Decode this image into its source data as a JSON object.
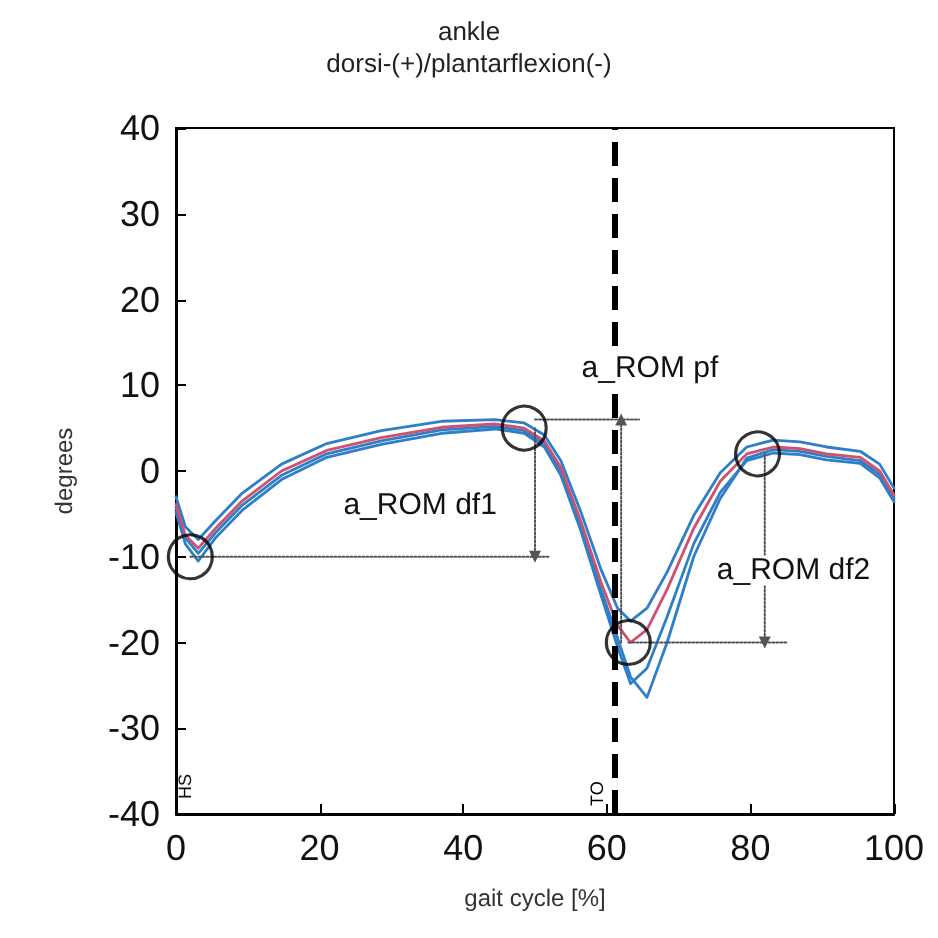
{
  "chart_data": {
    "type": "line",
    "title": "ankle",
    "subtitle": "dorsi-(+)/plantarflexion(-)",
    "xlabel": "gait cycle [%]",
    "ylabel": "degrees",
    "xlim": [
      0,
      100
    ],
    "xticks": [
      0,
      20,
      40,
      60,
      80,
      100
    ],
    "ylim": [
      -40,
      40
    ],
    "yticks": [
      -40,
      -30,
      -20,
      -10,
      0,
      10,
      20,
      30,
      40
    ],
    "marker": "none",
    "line_style": "solid",
    "series": [
      {
        "color": "#2f7fc8",
        "x": [
          0,
          1.3,
          3.1,
          5.5,
          9.2,
          14.7,
          21,
          28.6,
          37,
          44.4,
          48.5,
          51.3,
          53.6,
          56.4,
          59.2,
          61.5,
          63.3,
          65.6,
          68.4,
          72.1,
          75.8,
          79.5,
          83.2,
          86.9,
          90.6,
          95.3,
          98,
          100
        ],
        "values": [
          -3,
          -6.5,
          -8,
          -5.8,
          -2.6,
          0.8,
          3.2,
          4.7,
          5.8,
          6,
          5.6,
          4.2,
          1.2,
          -4.8,
          -11.5,
          -16,
          -17.5,
          -16,
          -11.8,
          -5.2,
          -0.2,
          2.8,
          3.6,
          3.4,
          2.8,
          2.3,
          0.8,
          -2
        ]
      },
      {
        "color": "#2f7fc8",
        "x": [
          0,
          1.3,
          3.1,
          5.5,
          9.2,
          14.7,
          21,
          28.6,
          37,
          44.4,
          48.5,
          51.3,
          53.6,
          56.4,
          59.2,
          61.5,
          63.3,
          65.6,
          68.4,
          72.1,
          75.8,
          79.5,
          83.2,
          86.9,
          90.6,
          95.3,
          98,
          100
        ],
        "values": [
          -4.8,
          -8.5,
          -10.5,
          -7.8,
          -4.6,
          -1,
          1.6,
          3.1,
          4.4,
          4.9,
          4.4,
          2.8,
          -0.5,
          -7,
          -14.5,
          -20.5,
          -24.8,
          -23,
          -17,
          -8.5,
          -2.5,
          1.2,
          2.1,
          1.9,
          1.3,
          0.9,
          -0.8,
          -3.6
        ]
      },
      {
        "color": "#2f7fc8",
        "x": [
          0,
          1.3,
          3.1,
          5.5,
          9.2,
          14.7,
          21,
          28.6,
          37,
          44.4,
          48.5,
          51.3,
          53.6,
          56.4,
          59.2,
          61.5,
          63.3,
          65.6,
          68.4,
          72.1,
          75.8,
          79.5,
          83.2,
          86.9,
          90.6,
          95.3,
          98,
          100
        ],
        "values": [
          -4.2,
          -7.8,
          -9.6,
          -7.2,
          -4,
          -0.5,
          2,
          3.5,
          4.8,
          5.2,
          4.7,
          3.2,
          0,
          -6.4,
          -13.8,
          -19.5,
          -24,
          -26.4,
          -20,
          -10,
          -3.2,
          1.5,
          2.5,
          2.3,
          1.7,
          1.2,
          -0.4,
          -3.2
        ]
      },
      {
        "color": "#d0506e",
        "x": [
          0,
          1.3,
          3.1,
          5.5,
          9.2,
          14.7,
          21,
          28.6,
          37,
          44.4,
          48.5,
          51.3,
          53.6,
          56.4,
          59.2,
          61.5,
          63.3,
          65.6,
          68.4,
          72.1,
          75.8,
          79.5,
          83.2,
          86.9,
          90.6,
          95.3,
          98,
          100
        ],
        "values": [
          -3.9,
          -7.5,
          -9,
          -6.7,
          -3.5,
          0,
          2.4,
          3.9,
          5.1,
          5.5,
          5,
          3.5,
          0.4,
          -5.9,
          -13,
          -18,
          -20,
          -18.5,
          -13.8,
          -6.7,
          -1.2,
          2,
          2.8,
          2.6,
          2,
          1.6,
          0,
          -2.8
        ]
      },
      {
        "color": "#555555",
        "line_style": "dotted",
        "x": [
          2,
          52
        ],
        "values": [
          -10,
          -10
        ]
      },
      {
        "color": "#555555",
        "line_style": "dotted",
        "x": [
          50,
          64.5
        ],
        "values": [
          6,
          6
        ]
      },
      {
        "color": "#555555",
        "line_style": "dotted",
        "x": [
          63,
          85
        ],
        "values": [
          -20,
          -20
        ]
      },
      {
        "color": "#555555",
        "line_style": "dotted",
        "marker": "triangle",
        "x": [
          50,
          50
        ],
        "values": [
          5,
          -10
        ]
      },
      {
        "color": "#555555",
        "line_style": "dotted",
        "marker": "triangle",
        "x": [
          62,
          62
        ],
        "values": [
          -20,
          6
        ]
      },
      {
        "color": "#555555",
        "line_style": "dotted",
        "marker": "triangle",
        "x": [
          82,
          82
        ],
        "values": [
          2,
          -20
        ]
      },
      {
        "type": "scatter",
        "marker": "circle",
        "color": "#000000",
        "x": [
          2,
          48.5,
          63,
          81
        ],
        "values": [
          -10,
          5,
          -20,
          2
        ]
      }
    ],
    "ref_lines": [
      {
        "axis": "x",
        "value": 61,
        "label": "TO",
        "line_style": "dashed",
        "color": "#000000"
      }
    ],
    "annotations": [
      "a_ROM pf",
      "a_ROM df1",
      "a_ROM df2",
      "HS"
    ]
  }
}
